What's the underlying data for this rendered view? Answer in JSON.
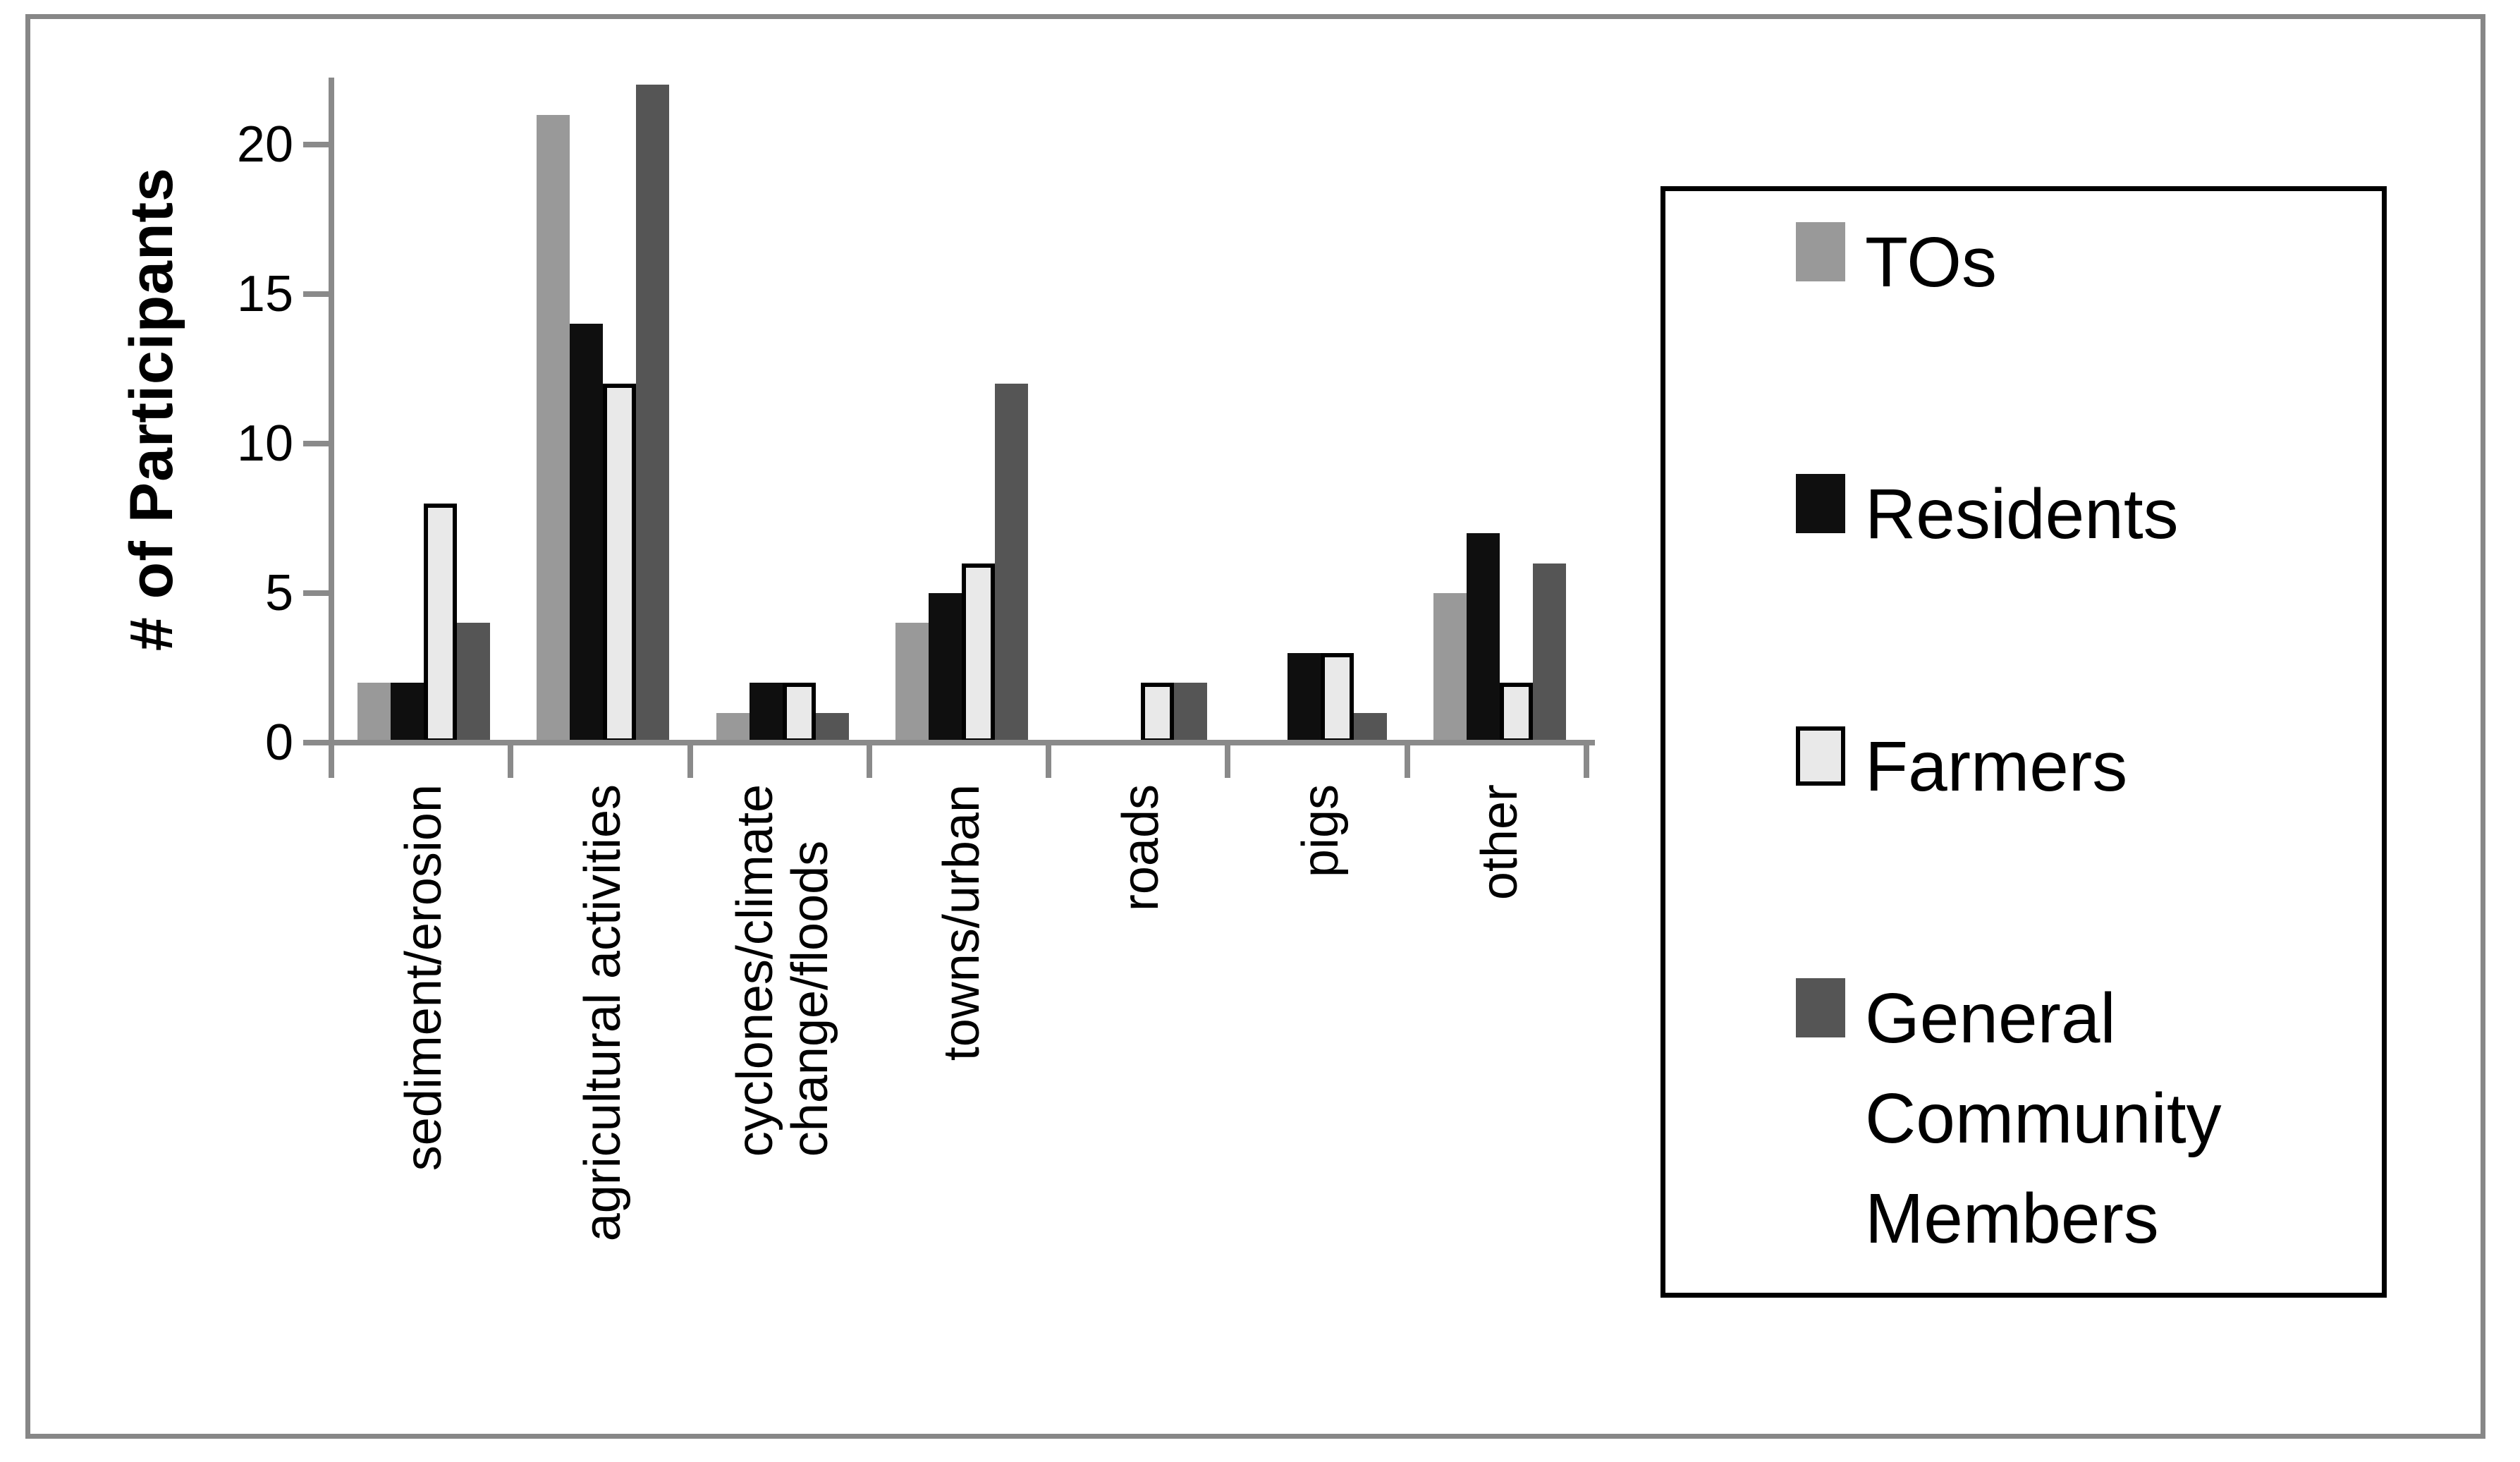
{
  "chart_data": {
    "type": "bar",
    "title": "",
    "ylabel": "# of Participants",
    "xlabel": "",
    "ylim": [
      0,
      22
    ],
    "yticks": [
      0,
      5,
      10,
      15,
      20
    ],
    "grid": "off",
    "legend_position": "right-box",
    "categories": [
      "sediment/erosion",
      "agricultural activities",
      "cyclones/climate\nchange/floods",
      "towns/urban",
      "roads",
      "pigs",
      "other"
    ],
    "series": [
      {
        "name": "TOs",
        "color": "#999999",
        "outline": null,
        "values": [
          2,
          21,
          1,
          4,
          0,
          0,
          5
        ]
      },
      {
        "name": "Residents",
        "color": "#0f0f0f",
        "outline": null,
        "values": [
          2,
          14,
          2,
          5,
          0,
          3,
          7
        ]
      },
      {
        "name": "Farmers",
        "color": "#e9e9e9",
        "outline": "#000000",
        "values": [
          8,
          12,
          2,
          6,
          2,
          3,
          2
        ]
      },
      {
        "name": "General Community Members",
        "color": "#555555",
        "outline": null,
        "values": [
          4,
          22,
          1,
          12,
          2,
          1,
          6
        ]
      }
    ],
    "colors": {
      "axis": "#8a8a8a",
      "frame": "#878787",
      "legend_border": "#000000",
      "text": "#000000",
      "background": "#ffffff"
    }
  }
}
